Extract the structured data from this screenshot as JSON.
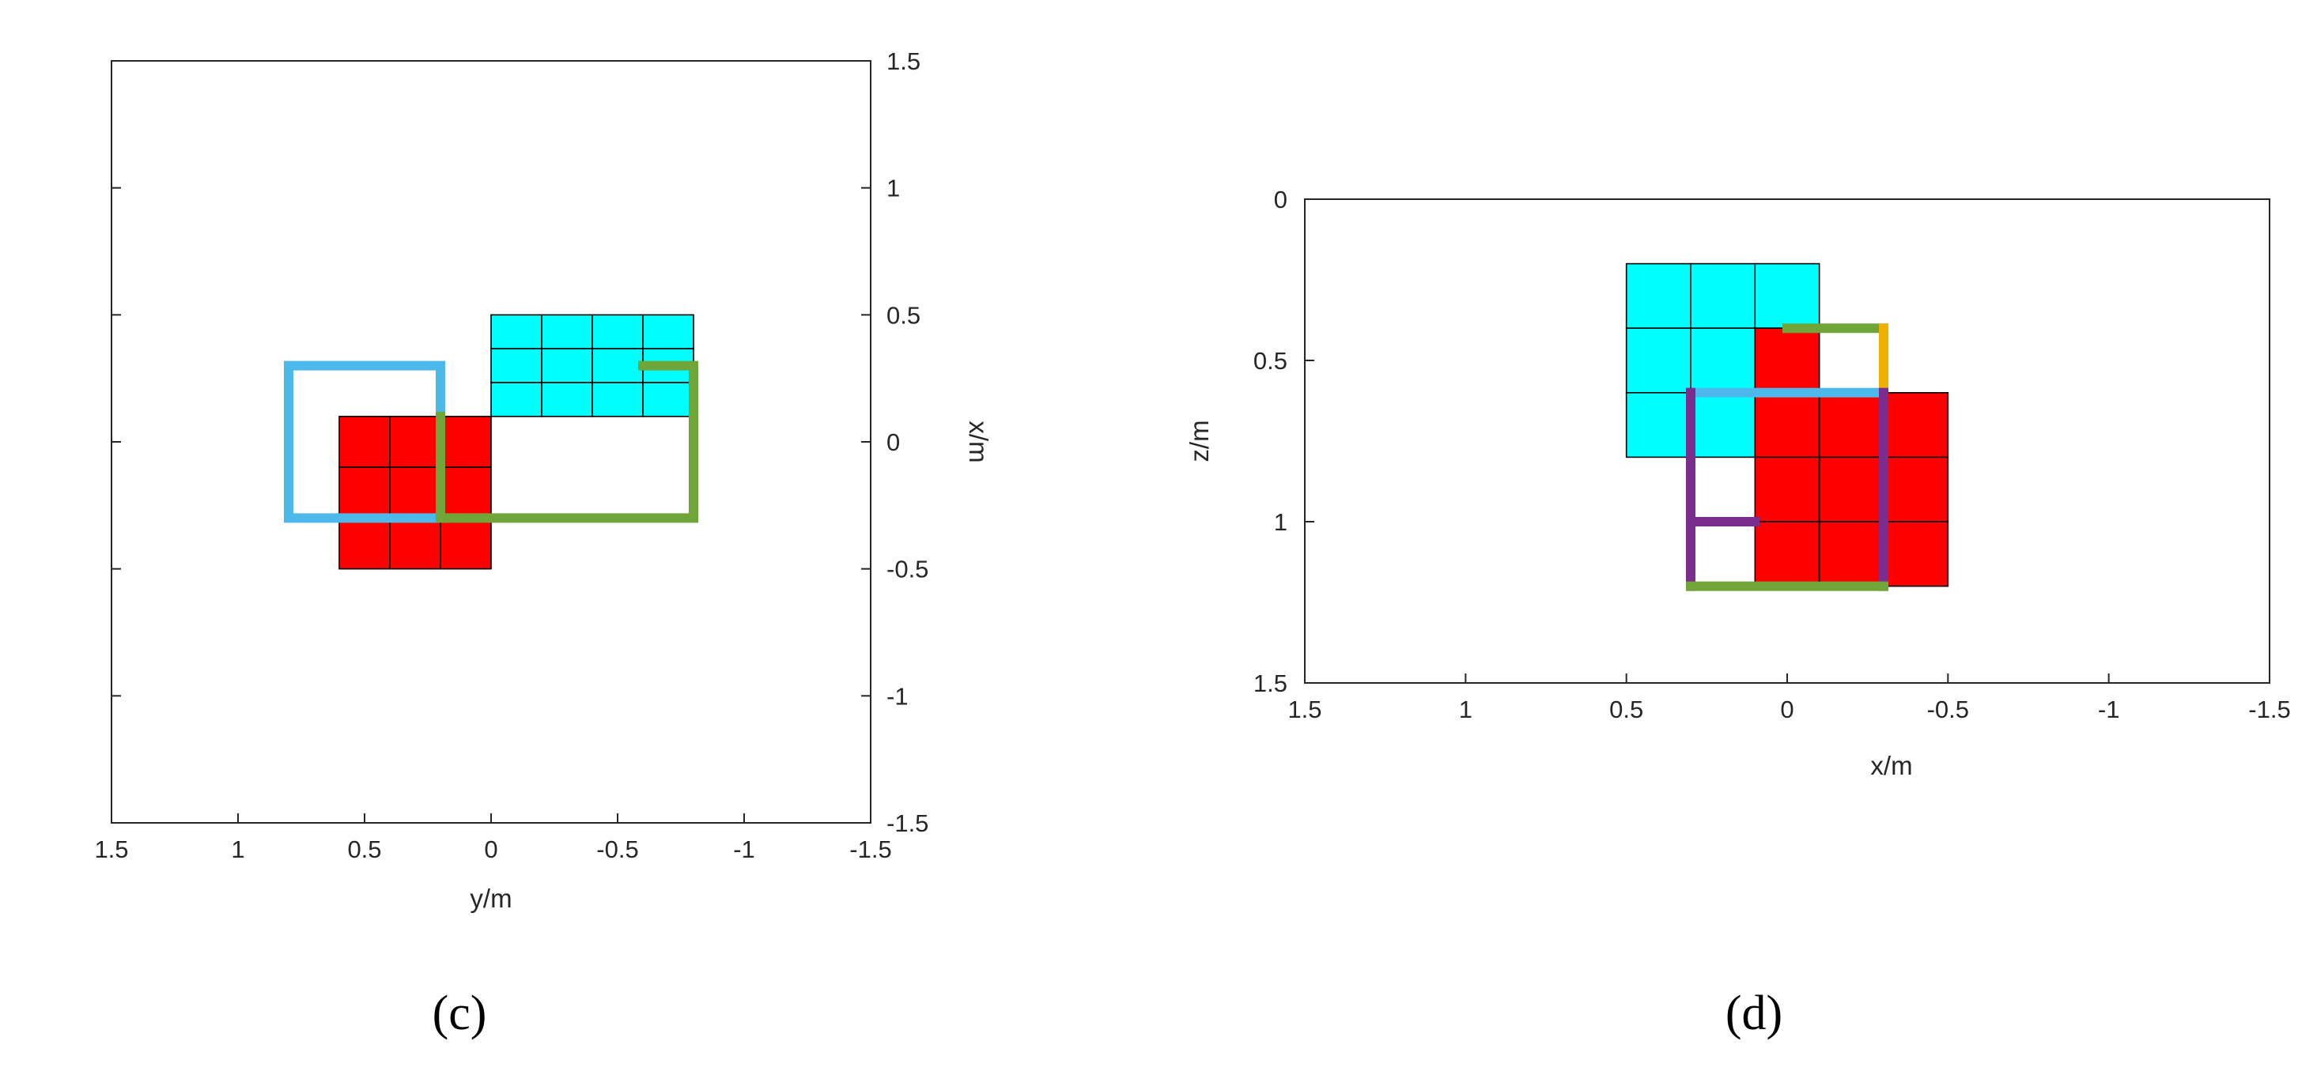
{
  "chart_data": [
    {
      "type": "scatter",
      "panel": "(c)",
      "xlabel": "y/m",
      "ylabel": "x/m",
      "xlim": [
        1.5,
        -1.5
      ],
      "ylim": [
        -1.5,
        1.5
      ],
      "x_ticks": [
        "1.5",
        "1",
        "0.5",
        "0",
        "-0.5",
        "-1",
        "-1.5"
      ],
      "x_tick_values": [
        1.5,
        1,
        0.5,
        0,
        -0.5,
        -1,
        -1.5
      ],
      "y_ticks": [
        "1.5",
        "1",
        "0.5",
        "0",
        "-0.5",
        "-1",
        "-1.5"
      ],
      "y_tick_values": [
        1.5,
        1,
        0.5,
        0,
        -0.5,
        -1,
        -1.5
      ],
      "y_axis_side": "right",
      "grids": [
        {
          "color": "#ff0000",
          "x_range": [
            0.6,
            0.0
          ],
          "y_range": [
            -0.5,
            0.1
          ],
          "cols": 3,
          "rows": 3
        },
        {
          "color": "#00ffff",
          "x_range": [
            0.0,
            -0.8
          ],
          "y_range": [
            0.1,
            0.5
          ],
          "cols": 4,
          "rows": 3
        }
      ],
      "outlines": [
        {
          "color": "#4db8ea",
          "points": [
            [
              0.2,
              0.3
            ],
            [
              0.8,
              0.3
            ],
            [
              0.8,
              -0.3
            ],
            [
              0.2,
              -0.3
            ],
            [
              0.2,
              0.3
            ]
          ]
        },
        {
          "color": "#70a53a",
          "points": [
            [
              0.2,
              0.1
            ],
            [
              0.2,
              -0.3
            ],
            [
              -0.8,
              -0.3
            ],
            [
              -0.8,
              0.3
            ],
            [
              -0.6,
              0.3
            ]
          ]
        }
      ]
    },
    {
      "type": "scatter",
      "panel": "(d)",
      "xlabel": "x/m",
      "ylabel": "z/m",
      "xlim": [
        1.5,
        -1.5
      ],
      "ylim": [
        1.5,
        0
      ],
      "x_ticks": [
        "1.5",
        "1",
        "0.5",
        "0",
        "-0.5",
        "-1",
        "-1.5"
      ],
      "x_tick_values": [
        1.5,
        1,
        0.5,
        0,
        -0.5,
        -1,
        -1.5
      ],
      "y_ticks": [
        "0",
        "0.5",
        "1",
        "1.5"
      ],
      "y_tick_values": [
        0,
        0.5,
        1,
        1.5
      ],
      "y_axis_side": "left",
      "grids": [
        {
          "color": "#00ffff",
          "x_range": [
            0.5,
            -0.1
          ],
          "z_range": [
            0.2,
            0.8
          ],
          "cols": 3,
          "rows": 3
        },
        {
          "color": "#ff0000",
          "x_range": [
            0.1,
            -0.1
          ],
          "z_range": [
            0.4,
            0.6
          ],
          "cols": 1,
          "rows": 1
        },
        {
          "color": "#ff0000",
          "x_range": [
            0.1,
            -0.5
          ],
          "z_range": [
            0.6,
            1.2
          ],
          "cols": 3,
          "rows": 3
        }
      ],
      "outlines": [
        {
          "color": "#70a53a",
          "points": [
            [
              0.0,
              0.4
            ],
            [
              -0.3,
              0.4
            ]
          ]
        },
        {
          "color": "#f0b000",
          "points": [
            [
              -0.3,
              0.4
            ],
            [
              -0.3,
              0.6
            ]
          ]
        },
        {
          "color": "#4db8ea",
          "points": [
            [
              0.3,
              0.6
            ],
            [
              -0.3,
              0.6
            ]
          ]
        },
        {
          "color": "#7b2d8e",
          "points": [
            [
              0.3,
              0.6
            ],
            [
              0.3,
              1.2
            ]
          ]
        },
        {
          "color": "#7b2d8e",
          "points": [
            [
              -0.3,
              0.6
            ],
            [
              -0.3,
              1.2
            ]
          ]
        },
        {
          "color": "#7b2d8e",
          "points": [
            [
              0.3,
              1.0
            ],
            [
              0.1,
              1.0
            ]
          ]
        },
        {
          "color": "#70a53a",
          "points": [
            [
              0.3,
              1.2
            ],
            [
              -0.3,
              1.2
            ]
          ]
        }
      ]
    }
  ]
}
